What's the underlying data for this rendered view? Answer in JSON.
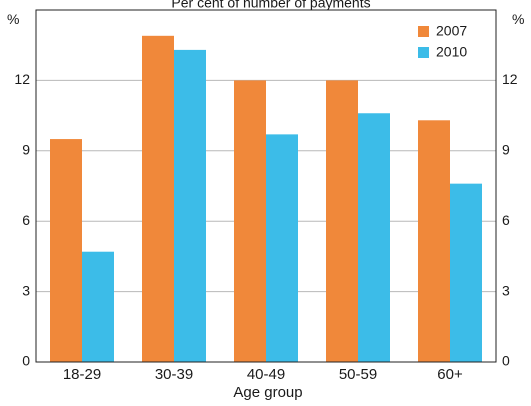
{
  "chart_data": {
    "type": "bar",
    "title": "Per cent of number of payments",
    "xlabel": "Age group",
    "ylabel_left": "%",
    "ylabel_right": "%",
    "categories": [
      "18-29",
      "30-39",
      "40-49",
      "50-59",
      "60+"
    ],
    "series": [
      {
        "name": "2007",
        "color": "#f0883a",
        "values": [
          9.5,
          13.9,
          12.0,
          12.0,
          10.3
        ]
      },
      {
        "name": "2010",
        "color": "#3cbce8",
        "values": [
          4.7,
          13.3,
          9.7,
          10.6,
          7.6
        ]
      }
    ],
    "ylim": [
      0,
      15
    ],
    "yticks": [
      0,
      3,
      6,
      9,
      12
    ],
    "grid": true,
    "legend_position": "top-right"
  }
}
